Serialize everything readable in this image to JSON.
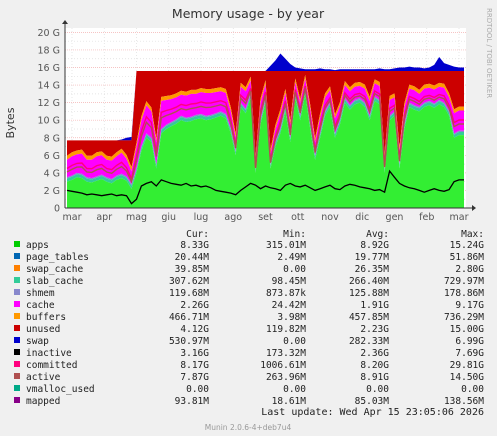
{
  "chart_data": {
    "type": "area",
    "title": "Memory usage - by year",
    "ylabel": "Bytes",
    "side_label": "RRDTOOL / TOBI OETIKER",
    "x_ticks": [
      "mar",
      "apr",
      "mag",
      "giu",
      "lug",
      "ago",
      "set",
      "ott",
      "nov",
      "dic",
      "gen",
      "feb",
      "mar"
    ],
    "y_ticks": [
      "0",
      "2 G",
      "4 G",
      "6 G",
      "8 G",
      "10 G",
      "12 G",
      "14 G",
      "16 G",
      "18 G",
      "20 G"
    ],
    "ylim": [
      0,
      20.5
    ],
    "grid": true,
    "legend_headers": [
      "Cur:",
      "Min:",
      "Avg:",
      "Max:"
    ],
    "series": [
      {
        "name": "apps",
        "color": "#00cc00",
        "cur": "8.33G",
        "min": "315.01M",
        "avg": "8.92G",
        "max": "15.24G"
      },
      {
        "name": "page_tables",
        "color": "#0066b3",
        "cur": "20.44M",
        "min": "2.49M",
        "avg": "19.77M",
        "max": "51.86M"
      },
      {
        "name": "swap_cache",
        "color": "#ff8000",
        "cur": "39.85M",
        "min": "0.00",
        "avg": "26.35M",
        "max": "2.80G"
      },
      {
        "name": "slab_cache",
        "color": "#33cc99",
        "cur": "307.62M",
        "min": "98.45M",
        "avg": "266.40M",
        "max": "729.97M"
      },
      {
        "name": "shmem",
        "color": "#8888cc",
        "cur": "119.68M",
        "min": "873.87k",
        "avg": "125.88M",
        "max": "178.86M"
      },
      {
        "name": "cache",
        "color": "#ff00ff",
        "cur": "2.26G",
        "min": "24.42M",
        "avg": "1.91G",
        "max": "9.17G"
      },
      {
        "name": "buffers",
        "color": "#ff9900",
        "cur": "466.71M",
        "min": "3.98M",
        "avg": "457.85M",
        "max": "736.29M"
      },
      {
        "name": "unused",
        "color": "#cc0000",
        "cur": "4.12G",
        "min": "119.82M",
        "avg": "2.23G",
        "max": "15.00G"
      },
      {
        "name": "swap",
        "color": "#0000cc",
        "cur": "530.97M",
        "min": "0.00",
        "avg": "282.33M",
        "max": "6.99G"
      },
      {
        "name": "inactive",
        "color": "#000000",
        "cur": "3.16G",
        "min": "173.32M",
        "avg": "2.36G",
        "max": "7.69G"
      },
      {
        "name": "committed",
        "color": "#ff007f",
        "cur": "8.17G",
        "min": "1006.61M",
        "avg": "8.20G",
        "max": "29.81G"
      },
      {
        "name": "active",
        "color": "#b05050",
        "cur": "7.87G",
        "min": "263.96M",
        "avg": "8.91G",
        "max": "14.50G"
      },
      {
        "name": "vmalloc_used",
        "color": "#00aa88",
        "cur": "0.00",
        "min": "0.00",
        "avg": "0.00",
        "max": "0.00"
      },
      {
        "name": "mapped",
        "color": "#880088",
        "cur": "93.81M",
        "min": "18.61M",
        "avg": "85.03M",
        "max": "138.56M"
      }
    ],
    "profile": {
      "unused_top": [
        7.7,
        7.7,
        7.7,
        7.7,
        7.7,
        7.7,
        7.7,
        7.7,
        7.7,
        7.7,
        7.7,
        7.7,
        7.7,
        7.7,
        15.6,
        15.6,
        15.6,
        15.6,
        15.6,
        15.6,
        15.6,
        15.6,
        15.6,
        15.6,
        15.6,
        15.6,
        15.6,
        15.6,
        15.6,
        15.6,
        15.6,
        15.6,
        15.6,
        15.6,
        15.6,
        15.6,
        15.6,
        15.6,
        15.6,
        15.6,
        15.6,
        15.6,
        15.6,
        15.6,
        15.6,
        15.6,
        15.6,
        15.6,
        15.6,
        15.6,
        15.6,
        15.6,
        15.6,
        15.6,
        15.6,
        15.6,
        15.6,
        15.6,
        15.6,
        15.6,
        15.6,
        15.6,
        15.6,
        15.6,
        15.6,
        15.6,
        15.6,
        15.6,
        15.6,
        15.6,
        15.6,
        15.6,
        15.6,
        15.6,
        15.6,
        15.6,
        15.6,
        15.6,
        15.6,
        15.6,
        15.6
      ],
      "swap_top": [
        7.7,
        7.7,
        7.7,
        7.7,
        7.7,
        7.7,
        7.7,
        7.7,
        7.7,
        7.7,
        7.7,
        7.8,
        8.0,
        8.1,
        15.6,
        15.6,
        15.6,
        15.6,
        15.6,
        15.6,
        15.6,
        15.6,
        15.6,
        15.6,
        15.6,
        15.6,
        15.6,
        15.6,
        15.6,
        15.6,
        15.6,
        15.6,
        15.6,
        15.6,
        15.6,
        15.6,
        15.6,
        15.6,
        15.6,
        15.6,
        15.6,
        16.2,
        16.8,
        17.6,
        17.0,
        16.4,
        16.0,
        15.9,
        15.8,
        15.8,
        15.8,
        15.9,
        15.8,
        15.8,
        15.7,
        15.8,
        15.8,
        15.8,
        15.8,
        15.8,
        15.8,
        15.8,
        15.8,
        15.9,
        15.8,
        15.8,
        15.9,
        16.0,
        16.0,
        16.1,
        16.0,
        16.0,
        15.9,
        16.0,
        16.3,
        17.2,
        16.5,
        16.3,
        16.1,
        16.0,
        16.0
      ],
      "apps": [
        3.0,
        3.2,
        3.5,
        3.4,
        3.0,
        2.9,
        3.1,
        3.3,
        3.0,
        2.8,
        3.2,
        3.4,
        3.1,
        2.2,
        4.0,
        6.5,
        8.0,
        7.5,
        4.5,
        8.5,
        9.0,
        9.3,
        9.6,
        10.0,
        9.8,
        9.9,
        10.1,
        10.2,
        10.0,
        10.1,
        10.3,
        10.5,
        10.2,
        8.5,
        6.0,
        11.5,
        10.8,
        12.5,
        4.0,
        9.5,
        12.0,
        4.5,
        7.0,
        8.5,
        11.0,
        7.5,
        12.5,
        10.0,
        13.0,
        9.0,
        5.5,
        8.0,
        10.5,
        11.5,
        8.0,
        9.5,
        12.0,
        11.2,
        11.8,
        12.0,
        11.5,
        10.0,
        12.2,
        11.8,
        4.0,
        10.0,
        10.5,
        4.5,
        9.0,
        11.5,
        11.2,
        11.0,
        11.5,
        11.7,
        11.4,
        11.8,
        11.5,
        10.5,
        8.0,
        8.3,
        8.3
      ],
      "cache_h": [
        2.0,
        2.2,
        2.1,
        2.3,
        2.0,
        2.1,
        2.3,
        2.2,
        2.0,
        2.1,
        2.2,
        2.4,
        2.0,
        1.5,
        2.5,
        3.0,
        3.2,
        3.0,
        2.5,
        3.2,
        2.8,
        2.6,
        2.5,
        2.4,
        2.5,
        2.6,
        2.4,
        2.5,
        2.6,
        2.5,
        2.4,
        2.3,
        2.4,
        2.0,
        1.5,
        1.8,
        2.0,
        1.5,
        1.0,
        2.0,
        1.6,
        1.2,
        1.5,
        1.8,
        1.6,
        1.5,
        1.3,
        1.5,
        1.2,
        1.8,
        1.5,
        1.8,
        1.6,
        1.4,
        1.7,
        1.6,
        1.5,
        1.6,
        1.5,
        1.4,
        1.6,
        1.7,
        1.5,
        1.6,
        1.2,
        1.8,
        1.6,
        1.5,
        2.0,
        1.6,
        1.7,
        1.5,
        1.6,
        1.5,
        1.6,
        1.5,
        1.7,
        1.6,
        2.3,
        2.3,
        2.3
      ],
      "inactive": [
        2.0,
        1.9,
        1.8,
        1.7,
        1.5,
        1.6,
        1.5,
        1.4,
        1.5,
        1.6,
        1.4,
        1.5,
        1.4,
        0.5,
        1.0,
        2.5,
        2.8,
        3.0,
        2.5,
        3.2,
        3.0,
        2.8,
        2.7,
        2.6,
        2.8,
        2.5,
        2.6,
        2.4,
        2.5,
        2.3,
        2.0,
        1.9,
        1.8,
        1.7,
        1.5,
        2.0,
        2.4,
        2.8,
        2.6,
        2.2,
        2.5,
        2.3,
        2.2,
        2.0,
        2.6,
        2.8,
        2.5,
        2.4,
        2.6,
        2.3,
        2.0,
        2.2,
        2.4,
        2.6,
        2.2,
        2.1,
        2.5,
        2.7,
        2.6,
        2.4,
        2.3,
        2.2,
        2.0,
        2.1,
        1.8,
        4.2,
        3.5,
        2.8,
        2.5,
        2.3,
        2.2,
        2.0,
        1.8,
        2.0,
        2.2,
        2.0,
        1.9,
        2.1,
        3.0,
        3.2,
        3.2
      ]
    },
    "footer_update": "Last update: Wed Apr 15 23:05:06 2026",
    "footer_version": "Munin 2.0.6-4+deb7u4"
  },
  "colors": {
    "background": "#f0f0f0",
    "plot_bg": "#ffffff",
    "grid_major": "#f4b0b0",
    "grid_minor": "#dddddd",
    "text": "#000000",
    "text_soft": "#555555",
    "footer_soft": "#999999",
    "axis": "#333333"
  }
}
